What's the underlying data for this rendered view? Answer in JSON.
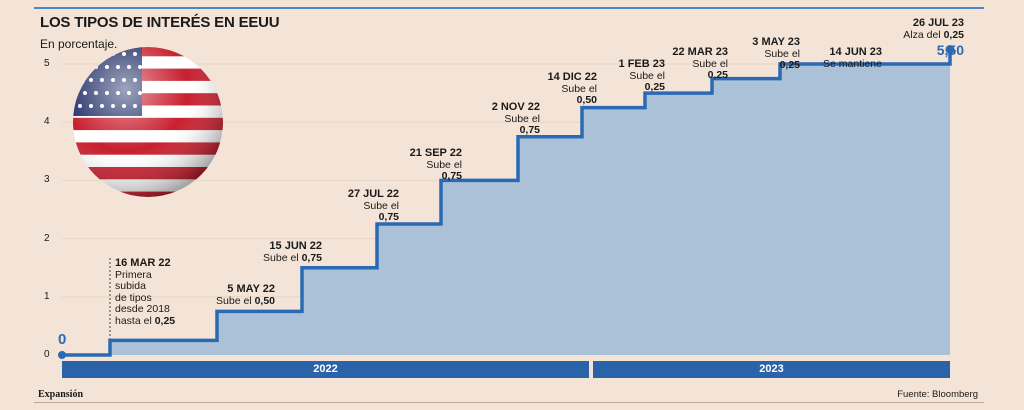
{
  "header": {
    "title": "LOS TIPOS DE INTERÉS EN EEUU",
    "subtitle": "En porcentaje."
  },
  "footer": {
    "brand": "Expansión",
    "source": "Fuente: Bloomberg"
  },
  "chart_data": {
    "type": "area",
    "title": "LOS TIPOS DE INTERÉS EN EEUU",
    "subtitle": "En porcentaje.",
    "ylim": [
      0,
      5.5
    ],
    "yticks": [
      "0",
      "1",
      "2",
      "3",
      "4",
      "5"
    ],
    "x_groups": [
      "2022",
      "2023"
    ],
    "start_label": "0",
    "end_label": "5,50",
    "colors": {
      "line": "#2a6ab5",
      "fill": "#aac1d8",
      "year_bar": "#2b63a8"
    },
    "series": [
      {
        "x": [
          "16 MAR 22",
          "5 MAY 22",
          "15 JUN 22",
          "27 JUL 22",
          "21 SEP 22",
          "2 NOV 22",
          "14 DIC 22",
          "1 FEB 23",
          "22 MAR 23",
          "3 MAY 23",
          "14 JUN 23",
          "26 JUL 23"
        ],
        "values": [
          0.25,
          0.75,
          1.5,
          2.25,
          3.0,
          3.75,
          4.25,
          4.5,
          4.75,
          5.0,
          5.0,
          5.25
        ]
      }
    ],
    "annotations": [
      {
        "date": "16 MAR  22",
        "lines": [
          "Primera",
          "subida",
          "de tipos",
          "desde 2018"
        ],
        "pre": "hasta el",
        "value": "0,25"
      },
      {
        "date": "5 MAY 22",
        "pre": "Sube el",
        "value": "0,50"
      },
      {
        "date": "15 JUN 22",
        "pre": "Sube el",
        "value": "0,75"
      },
      {
        "date": "27 JUL 22",
        "pre": "Sube el",
        "value": "0,75"
      },
      {
        "date": "21 SEP 22",
        "pre": "Sube el",
        "value": "0,75"
      },
      {
        "date": "2 NOV 22",
        "pre": "Sube el",
        "value": "0,75"
      },
      {
        "date": "14 DIC 22",
        "pre": "Sube el",
        "value": "0,50"
      },
      {
        "date": "1 FEB 23",
        "pre": "Sube el",
        "value": "0,25"
      },
      {
        "date": "22 MAR 23",
        "pre": "Sube el",
        "value": "0,25"
      },
      {
        "date": "3 MAY 23",
        "pre": "Sube el",
        "value": "0,25"
      },
      {
        "date": "14 JUN 23",
        "pre": "Se mantiene",
        "value": ""
      },
      {
        "date": "26 JUL 23",
        "pre": "Alza del",
        "value": "0,25"
      }
    ]
  },
  "decor": {
    "flag_icon": "us-flag-globe-icon"
  }
}
